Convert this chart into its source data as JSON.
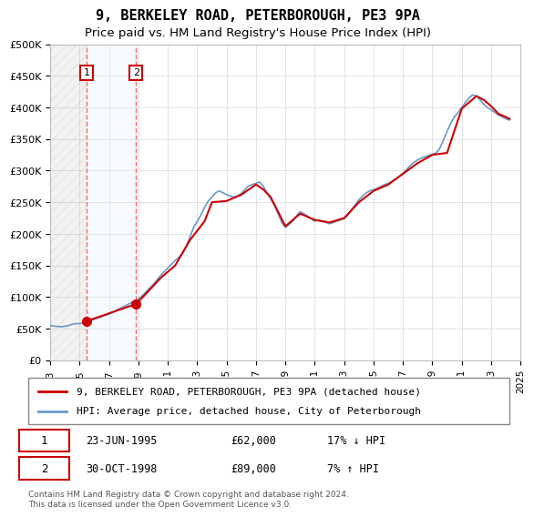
{
  "title_line1": "9, BERKELEY ROAD, PETERBOROUGH, PE3 9PA",
  "title_line2": "Price paid vs. HM Land Registry's House Price Index (HPI)",
  "ylabel": "",
  "ylim": [
    0,
    500000
  ],
  "yticks": [
    0,
    50000,
    100000,
    150000,
    200000,
    250000,
    300000,
    350000,
    400000,
    450000,
    500000
  ],
  "ytick_labels": [
    "£0",
    "£50K",
    "£100K",
    "£150K",
    "£200K",
    "£250K",
    "£300K",
    "£350K",
    "£400K",
    "£450K",
    "£500K"
  ],
  "transactions": [
    {
      "label": "1",
      "date": 1995.48,
      "price": 62000,
      "note": "23-JUN-1995",
      "amount": "£62,000",
      "hpi_note": "17% ↓ HPI"
    },
    {
      "label": "2",
      "date": 1998.83,
      "price": 89000,
      "note": "30-OCT-1998",
      "amount": "£89,000",
      "hpi_note": "7% ↑ HPI"
    }
  ],
  "transaction_box_color": "#cc0000",
  "vline_color": "#ff4444",
  "shade_color": "#ddeeff",
  "hatch_color": "#cccccc",
  "property_line_color": "#cc0000",
  "hpi_line_color": "#6699cc",
  "legend_label1": "9, BERKELEY ROAD, PETERBOROUGH, PE3 9PA (detached house)",
  "legend_label2": "HPI: Average price, detached house, City of Peterborough",
  "footer": "Contains HM Land Registry data © Crown copyright and database right 2024.\nThis data is licensed under the Open Government Licence v3.0.",
  "hpi_data": {
    "dates": [
      1993.0,
      1993.25,
      1993.5,
      1993.75,
      1994.0,
      1994.25,
      1994.5,
      1994.75,
      1995.0,
      1995.25,
      1995.5,
      1995.75,
      1996.0,
      1996.25,
      1996.5,
      1996.75,
      1997.0,
      1997.25,
      1997.5,
      1997.75,
      1998.0,
      1998.25,
      1998.5,
      1998.75,
      1999.0,
      1999.25,
      1999.5,
      1999.75,
      2000.0,
      2000.25,
      2000.5,
      2000.75,
      2001.0,
      2001.25,
      2001.5,
      2001.75,
      2002.0,
      2002.25,
      2002.5,
      2002.75,
      2003.0,
      2003.25,
      2003.5,
      2003.75,
      2004.0,
      2004.25,
      2004.5,
      2004.75,
      2005.0,
      2005.25,
      2005.5,
      2005.75,
      2006.0,
      2006.25,
      2006.5,
      2006.75,
      2007.0,
      2007.25,
      2007.5,
      2007.75,
      2008.0,
      2008.25,
      2008.5,
      2008.75,
      2009.0,
      2009.25,
      2009.5,
      2009.75,
      2010.0,
      2010.25,
      2010.5,
      2010.75,
      2011.0,
      2011.25,
      2011.5,
      2011.75,
      2012.0,
      2012.25,
      2012.5,
      2012.75,
      2013.0,
      2013.25,
      2013.5,
      2013.75,
      2014.0,
      2014.25,
      2014.5,
      2014.75,
      2015.0,
      2015.25,
      2015.5,
      2015.75,
      2016.0,
      2016.25,
      2016.5,
      2016.75,
      2017.0,
      2017.25,
      2017.5,
      2017.75,
      2018.0,
      2018.25,
      2018.5,
      2018.75,
      2019.0,
      2019.25,
      2019.5,
      2019.75,
      2020.0,
      2020.25,
      2020.5,
      2020.75,
      2021.0,
      2021.25,
      2021.5,
      2021.75,
      2022.0,
      2022.25,
      2022.5,
      2022.75,
      2023.0,
      2023.25,
      2023.5,
      2023.75,
      2024.0,
      2024.25
    ],
    "values": [
      55000,
      54000,
      53500,
      53000,
      54000,
      55000,
      57000,
      58000,
      58000,
      59000,
      61000,
      63000,
      65000,
      67000,
      69000,
      71000,
      73000,
      76000,
      79000,
      82000,
      85000,
      88000,
      91000,
      94000,
      97000,
      102000,
      108000,
      114000,
      120000,
      127000,
      134000,
      140000,
      146000,
      152000,
      158000,
      163000,
      169000,
      180000,
      195000,
      210000,
      220000,
      230000,
      242000,
      252000,
      258000,
      265000,
      268000,
      265000,
      262000,
      260000,
      258000,
      260000,
      264000,
      270000,
      276000,
      278000,
      280000,
      282000,
      275000,
      265000,
      255000,
      245000,
      232000,
      218000,
      210000,
      215000,
      220000,
      228000,
      235000,
      232000,
      228000,
      224000,
      220000,
      222000,
      220000,
      218000,
      216000,
      218000,
      220000,
      222000,
      224000,
      230000,
      238000,
      246000,
      254000,
      260000,
      265000,
      268000,
      270000,
      272000,
      275000,
      278000,
      280000,
      283000,
      287000,
      291000,
      296000,
      302000,
      308000,
      313000,
      317000,
      320000,
      322000,
      324000,
      326000,
      328000,
      335000,
      348000,
      362000,
      375000,
      385000,
      392000,
      400000,
      408000,
      415000,
      420000,
      418000,
      412000,
      405000,
      400000,
      396000,
      392000,
      388000,
      385000,
      382000,
      380000
    ]
  },
  "property_data": {
    "dates": [
      1993.0,
      1995.48,
      1998.83,
      1999.5,
      2000.5,
      2001.5,
      2002.5,
      2003.5,
      2004.0,
      2005.0,
      2006.0,
      2007.0,
      2007.5,
      2008.0,
      2009.0,
      2010.0,
      2011.0,
      2012.0,
      2013.0,
      2014.0,
      2015.0,
      2016.0,
      2017.0,
      2018.0,
      2019.0,
      2020.0,
      2021.0,
      2022.0,
      2022.5,
      2023.0,
      2023.5,
      2024.0,
      2024.25
    ],
    "values": [
      null,
      62000,
      89000,
      105000,
      130000,
      150000,
      190000,
      220000,
      250000,
      252000,
      262000,
      278000,
      270000,
      258000,
      212000,
      232000,
      222000,
      218000,
      225000,
      250000,
      268000,
      278000,
      295000,
      312000,
      325000,
      328000,
      398000,
      418000,
      412000,
      402000,
      390000,
      385000,
      382000
    ]
  }
}
